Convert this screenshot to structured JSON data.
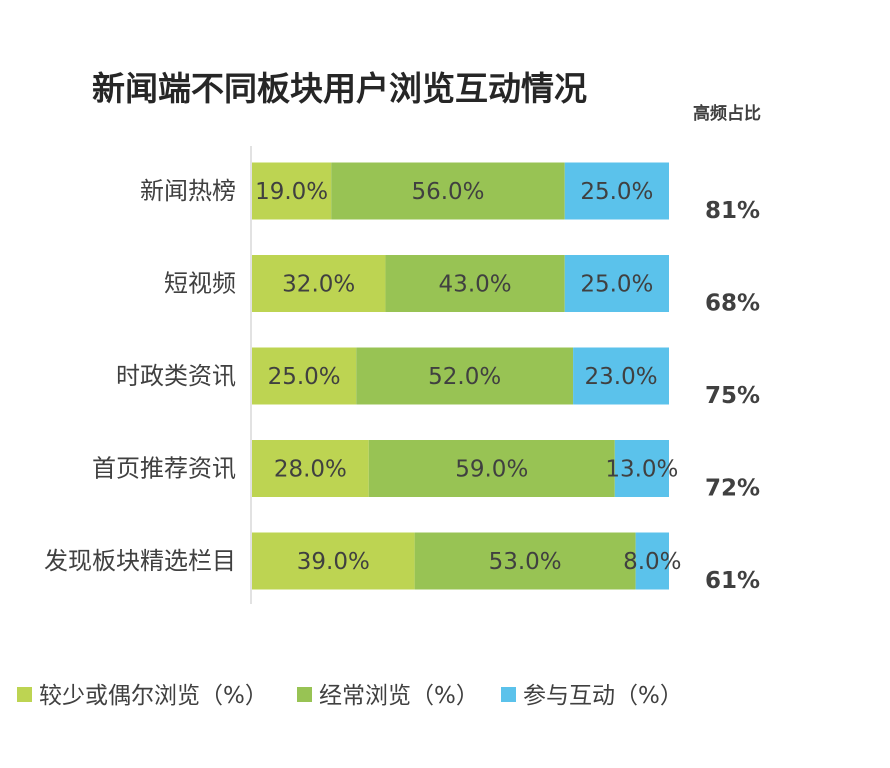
{
  "chart_data": {
    "type": "bar",
    "orientation": "horizontal",
    "stacked": true,
    "title": "新闻端不同板块用户浏览互动情况",
    "ratio_header": "高频占比",
    "categories": [
      "新闻热榜",
      "短视频",
      "时政类资讯",
      "首页推荐资讯",
      "发现板块精选栏目"
    ],
    "series": [
      {
        "name": "较少或偶尔浏览（%）",
        "color": "#bdd452",
        "values": [
          19.0,
          32.0,
          25.0,
          28.0,
          39.0
        ],
        "labels": [
          "19.0%",
          "32.0%",
          "25.0%",
          "28.0%",
          "39.0%"
        ]
      },
      {
        "name": "经常浏览（%）",
        "color": "#98c354",
        "values": [
          56.0,
          43.0,
          52.0,
          59.0,
          53.0
        ],
        "labels": [
          "56.0%",
          "43.0%",
          "52.0%",
          "59.0%",
          "53.0%"
        ]
      },
      {
        "name": "参与互动（%）",
        "color": "#5bc2eb",
        "values": [
          25.0,
          25.0,
          23.0,
          13.0,
          8.0
        ],
        "labels": [
          "25.0%",
          "25.0%",
          "23.0%",
          "13.0%",
          "8.0%"
        ]
      }
    ],
    "ratios": [
      "81%",
      "68%",
      "75%",
      "72%",
      "61%"
    ],
    "xlim": [
      0,
      100
    ],
    "grid": false,
    "legend_position": "bottom"
  }
}
